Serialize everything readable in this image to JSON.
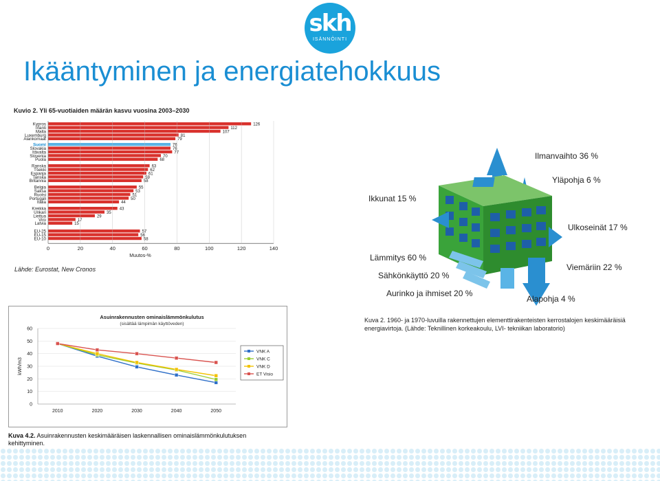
{
  "header": {
    "title": "Ikääntyminen ja energiatehokkuus"
  },
  "logo": {
    "mark": "skh",
    "subtitle": "ISÄNNÖINTI"
  },
  "bar_figure": {
    "caption": "Kuvio 2. Yli 65-vuotiaiden määrän kasvu vuosina 2003–2030",
    "source": "Lähde: Eurostat, New Cronos"
  },
  "energy_figure": {
    "labels": {
      "ventilation": "Ilmanvaihto 36 %",
      "top_floor": "Yläpohja 6 %",
      "windows": "Ikkunat 15 %",
      "outer_walls": "Ulkoseinät 17 %",
      "heating": "Lämmitys 60 %",
      "drain": "Viemäriin 22 %",
      "electricity": "Sähkönkäyttö 20 %",
      "sun_people": "Aurinko ja ihmiset 20 %",
      "base_floor": "Alapohja 4 %"
    },
    "caption": "Kuva 2. 1960- ja 1970-luvuilla rakennettujen elementtirakenteisten kerrostalojen keskimääräisiä energiavirtoja. (Lähde: Teknillinen korkeakoulu, LVI- tekniikan laboratorio)"
  },
  "line_figure": {
    "caption_bold": "Kuva 4.2.",
    "caption_text": " Asuinrakennusten keskimääräisen laskennallisen ominaislämmönkulutuksen kehittyminen."
  },
  "colors": {
    "accent": "#1a8ed3",
    "bar": "#d9322d",
    "highlight": "#5ab4e6"
  },
  "chart_data": [
    {
      "type": "bar",
      "orientation": "horizontal",
      "title": "Kuvio 2. Yli 65-vuotiaiden määrän kasvu vuosina 2003–2030",
      "xlabel": "Muutos-%",
      "xlim": [
        0,
        140
      ],
      "xticks": [
        0,
        20,
        40,
        60,
        80,
        100,
        120,
        140
      ],
      "categories": [
        "Kypros",
        "Irlanti",
        "Malta",
        "Luxemburg",
        "Alankomaat",
        "Suomi",
        "Slovakia",
        "Itävalta",
        "Slovenia",
        "Puola",
        "Ranska",
        "Tšekki",
        "Espanja",
        "Tanska",
        "Britannia",
        "Belgia",
        "Saksa",
        "Ruotsi",
        "Portugali",
        "Italia",
        "Kreikka",
        "Unkari",
        "Liettua",
        "Viro",
        "Latvia",
        "EU-25",
        "EU-15",
        "EU-10"
      ],
      "values": [
        126,
        112,
        107,
        81,
        79,
        76,
        76,
        77,
        70,
        68,
        63,
        62,
        61,
        59,
        58,
        55,
        53,
        51,
        50,
        44,
        43,
        35,
        29,
        17,
        15,
        57,
        56,
        58
      ],
      "highlight": "Suomi",
      "source": "Lähde: Eurostat, New Cronos"
    },
    {
      "type": "line",
      "title": "Asuinrakennusten ominaislämmönkulutus",
      "subtitle": "(sisältää lämpimän käyttöveden)",
      "ylabel": "kWh/m3",
      "ylim": [
        0,
        60
      ],
      "yticks": [
        0,
        10,
        20,
        30,
        40,
        50,
        60
      ],
      "x": [
        2010,
        2020,
        2030,
        2040,
        2050
      ],
      "series": [
        {
          "name": "VNK A",
          "color": "#2e6fc8",
          "values": [
            48,
            38,
            29.5,
            23,
            17
          ]
        },
        {
          "name": "VNK C",
          "color": "#9acd32",
          "values": [
            48,
            39,
            32.5,
            27,
            19.5
          ]
        },
        {
          "name": "VNK D",
          "color": "#f2c200",
          "values": [
            48,
            40,
            33,
            27.5,
            22.5
          ]
        },
        {
          "name": "ET Visio",
          "color": "#d9534f",
          "values": [
            48,
            43,
            40,
            36.5,
            33
          ]
        }
      ]
    }
  ]
}
